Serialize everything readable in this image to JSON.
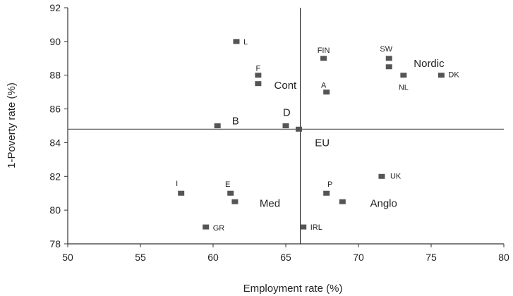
{
  "chart_data": {
    "type": "scatter",
    "title": "",
    "xlabel": "Employment rate (%)",
    "ylabel": "1-Poverty rate (%)",
    "xlim": [
      50,
      80
    ],
    "ylim": [
      78,
      92
    ],
    "xticks": [
      50,
      55,
      60,
      65,
      70,
      75,
      80
    ],
    "yticks": [
      78,
      80,
      82,
      84,
      86,
      88,
      90,
      92
    ],
    "reference_lines": {
      "x": 66,
      "y": 84.8
    },
    "grid": false,
    "marker_color": "#555555",
    "points": [
      {
        "label": "L",
        "x": 61.6,
        "y": 90.0
      },
      {
        "label": "F",
        "x": 63.1,
        "y": 88.0
      },
      {
        "label": "",
        "x": 63.1,
        "y": 87.5
      },
      {
        "label": "FIN",
        "x": 67.6,
        "y": 89.0
      },
      {
        "label": "SW",
        "x": 72.1,
        "y": 89.0
      },
      {
        "label": "",
        "x": 72.1,
        "y": 88.5
      },
      {
        "label": "NL",
        "x": 73.1,
        "y": 88.0
      },
      {
        "label": "DK",
        "x": 75.7,
        "y": 88.0
      },
      {
        "label": "A",
        "x": 67.8,
        "y": 87.0
      },
      {
        "label": "",
        "x": 60.3,
        "y": 85.0
      },
      {
        "label": "",
        "x": 65.0,
        "y": 85.0
      },
      {
        "label": "",
        "x": 65.9,
        "y": 84.8
      },
      {
        "label": "I",
        "x": 57.8,
        "y": 81.0
      },
      {
        "label": "E",
        "x": 61.2,
        "y": 81.0
      },
      {
        "label": "",
        "x": 61.5,
        "y": 80.5
      },
      {
        "label": "P",
        "x": 67.8,
        "y": 81.0
      },
      {
        "label": "",
        "x": 68.9,
        "y": 80.5
      },
      {
        "label": "UK",
        "x": 71.6,
        "y": 82.0
      },
      {
        "label": "GR",
        "x": 59.5,
        "y": 79.0
      },
      {
        "label": "IRL",
        "x": 66.2,
        "y": 79.0
      }
    ],
    "group_labels": [
      {
        "label": "Nordic",
        "x": 73.8,
        "y": 88.7
      },
      {
        "label": "Cont",
        "x": 64.2,
        "y": 87.4
      },
      {
        "label": "B",
        "x": 61.3,
        "y": 85.3
      },
      {
        "label": "D",
        "x": 64.8,
        "y": 85.8
      },
      {
        "label": "EU",
        "x": 67.0,
        "y": 84.0
      },
      {
        "label": "Med",
        "x": 63.2,
        "y": 80.4
      },
      {
        "label": "Anglo",
        "x": 70.8,
        "y": 80.4
      }
    ]
  }
}
